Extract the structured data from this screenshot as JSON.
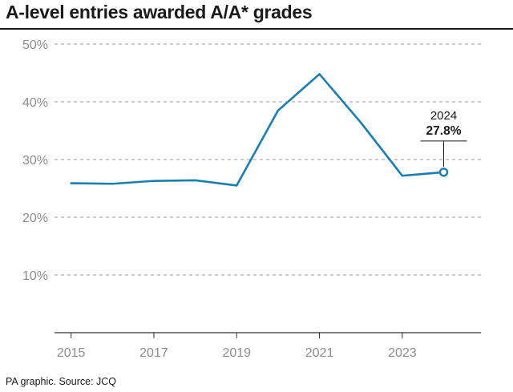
{
  "title": "A-level entries awarded A/A* grades",
  "source": "PA graphic. Source: JCQ",
  "colors": {
    "line": "#1a7eb3",
    "grid": "#9a9a9a",
    "axis": "#333333",
    "tick_text": "#8c8c8c"
  },
  "chart_data": {
    "type": "line",
    "title": "A-level entries awarded A/A* grades",
    "xlabel": "",
    "ylabel": "",
    "x": [
      2015,
      2016,
      2017,
      2018,
      2019,
      2020,
      2021,
      2022,
      2023,
      2024
    ],
    "series": [
      {
        "values": [
          25.9,
          25.8,
          26.3,
          26.4,
          25.5,
          38.5,
          44.8,
          36.4,
          27.2,
          27.8
        ]
      }
    ],
    "xlim": [
      2014.6,
      2024.9
    ],
    "ylim": [
      0,
      50
    ],
    "x_ticks": [
      "2015",
      "2017",
      "2019",
      "2021",
      "2023"
    ],
    "y_ticks": [
      "10%",
      "20%",
      "30%",
      "40%",
      "50%"
    ],
    "grid": "horizontal dashed",
    "annotation": {
      "year": "2024",
      "value": "27.8%"
    }
  }
}
